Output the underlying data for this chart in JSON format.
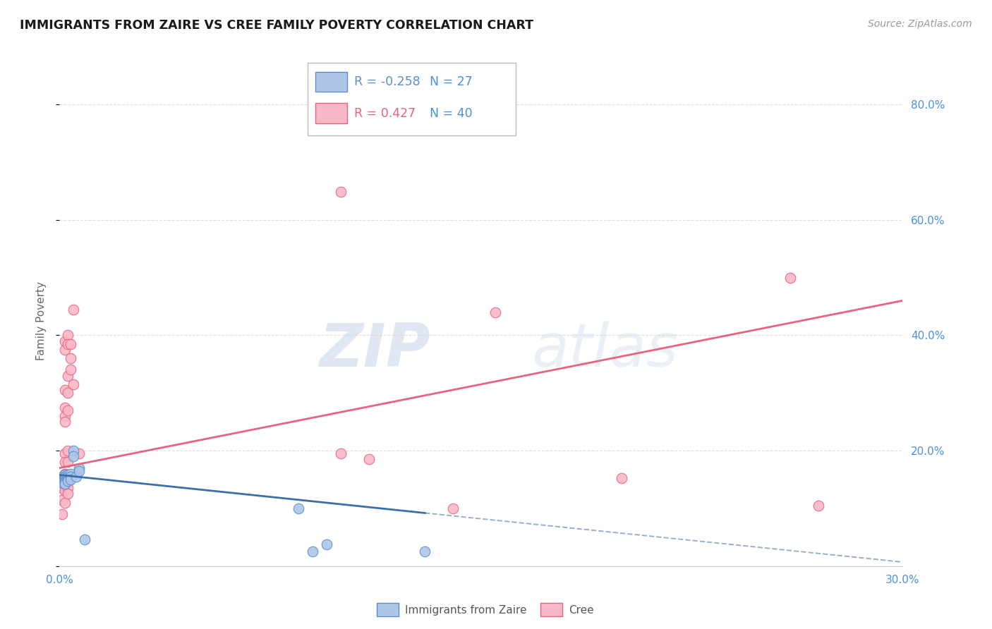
{
  "title": "IMMIGRANTS FROM ZAIRE VS CREE FAMILY POVERTY CORRELATION CHART",
  "source": "Source: ZipAtlas.com",
  "ylabel": "Family Poverty",
  "xlim": [
    0.0,
    0.3
  ],
  "ylim": [
    0.0,
    0.85
  ],
  "ytick_values": [
    0.0,
    0.2,
    0.4,
    0.6,
    0.8
  ],
  "xtick_values": [
    0.0,
    0.05,
    0.1,
    0.15,
    0.2,
    0.25,
    0.3
  ],
  "right_ytick_labels": [
    "80.0%",
    "60.0%",
    "40.0%",
    "20.0%"
  ],
  "right_ytick_values": [
    0.8,
    0.6,
    0.4,
    0.2
  ],
  "legend": {
    "blue_r": "-0.258",
    "blue_n": "27",
    "pink_r": "0.427",
    "pink_n": "40"
  },
  "blue_scatter": [
    [
      0.001,
      0.155
    ],
    [
      0.001,
      0.15
    ],
    [
      0.001,
      0.148
    ],
    [
      0.001,
      0.145
    ],
    [
      0.002,
      0.158
    ],
    [
      0.002,
      0.155
    ],
    [
      0.002,
      0.15
    ],
    [
      0.002,
      0.148
    ],
    [
      0.002,
      0.145
    ],
    [
      0.002,
      0.143
    ],
    [
      0.003,
      0.158
    ],
    [
      0.003,
      0.155
    ],
    [
      0.003,
      0.15
    ],
    [
      0.003,
      0.148
    ],
    [
      0.004,
      0.16
    ],
    [
      0.004,
      0.155
    ],
    [
      0.004,
      0.15
    ],
    [
      0.005,
      0.2
    ],
    [
      0.005,
      0.19
    ],
    [
      0.006,
      0.155
    ],
    [
      0.007,
      0.17
    ],
    [
      0.007,
      0.165
    ],
    [
      0.009,
      0.046
    ],
    [
      0.085,
      0.1
    ],
    [
      0.09,
      0.025
    ],
    [
      0.095,
      0.038
    ],
    [
      0.13,
      0.025
    ]
  ],
  "pink_scatter": [
    [
      0.001,
      0.145
    ],
    [
      0.001,
      0.135
    ],
    [
      0.001,
      0.115
    ],
    [
      0.001,
      0.09
    ],
    [
      0.002,
      0.39
    ],
    [
      0.002,
      0.375
    ],
    [
      0.002,
      0.305
    ],
    [
      0.002,
      0.275
    ],
    [
      0.002,
      0.26
    ],
    [
      0.002,
      0.25
    ],
    [
      0.002,
      0.195
    ],
    [
      0.002,
      0.18
    ],
    [
      0.002,
      0.16
    ],
    [
      0.002,
      0.14
    ],
    [
      0.002,
      0.13
    ],
    [
      0.002,
      0.11
    ],
    [
      0.003,
      0.4
    ],
    [
      0.003,
      0.385
    ],
    [
      0.003,
      0.33
    ],
    [
      0.003,
      0.3
    ],
    [
      0.003,
      0.27
    ],
    [
      0.003,
      0.2
    ],
    [
      0.003,
      0.18
    ],
    [
      0.003,
      0.145
    ],
    [
      0.003,
      0.135
    ],
    [
      0.003,
      0.125
    ],
    [
      0.004,
      0.385
    ],
    [
      0.004,
      0.36
    ],
    [
      0.004,
      0.34
    ],
    [
      0.005,
      0.445
    ],
    [
      0.005,
      0.315
    ],
    [
      0.007,
      0.195
    ],
    [
      0.1,
      0.648
    ],
    [
      0.1,
      0.195
    ],
    [
      0.11,
      0.185
    ],
    [
      0.14,
      0.1
    ],
    [
      0.155,
      0.44
    ],
    [
      0.2,
      0.153
    ],
    [
      0.26,
      0.5
    ],
    [
      0.27,
      0.105
    ]
  ],
  "blue_line_solid": {
    "x0": 0.0,
    "y0": 0.158,
    "x1": 0.13,
    "y1": 0.092
  },
  "blue_line_dashed": {
    "x0": 0.13,
    "y0": 0.092,
    "x1": 0.3,
    "y1": 0.007
  },
  "pink_line": {
    "x0": 0.0,
    "y0": 0.17,
    "x1": 0.3,
    "y1": 0.46
  },
  "watermark_zip": "ZIP",
  "watermark_atlas": "atlas",
  "bg_color": "#ffffff",
  "scatter_blue_color": "#adc6e8",
  "scatter_blue_edge": "#5b8fc9",
  "scatter_pink_color": "#f9b8c8",
  "scatter_pink_edge": "#e8637f",
  "line_blue_color": "#3b6faa",
  "line_pink_color": "#e8637f",
  "title_color": "#1a1a1a",
  "axis_label_color": "#666666",
  "tick_color": "#4a90d9",
  "grid_color": "#e0e0e0",
  "source_color": "#999999"
}
